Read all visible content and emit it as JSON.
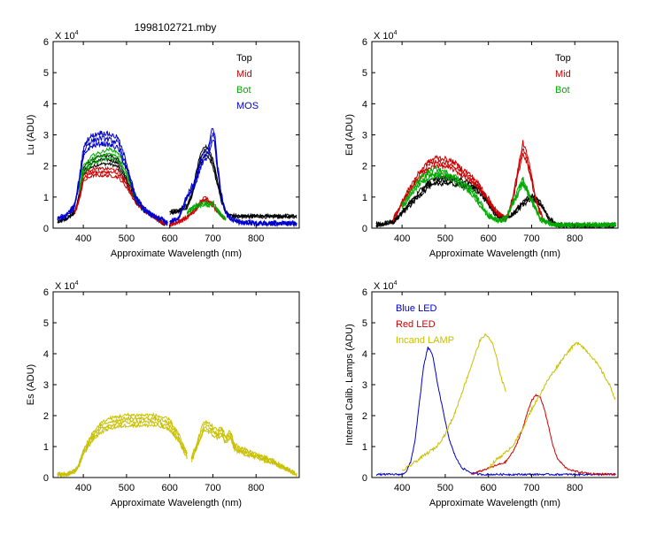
{
  "figure_title": "1998102721.mby",
  "chart_data": [
    {
      "type": "line",
      "ylabel": "Lu (ADU)",
      "xlabel": "Approximate Wavelength (nm)",
      "exponent_label": "X 10",
      "exponent_power": "4",
      "xlim": [
        330,
        900
      ],
      "ylim": [
        0,
        6
      ],
      "xticks": [
        400,
        500,
        600,
        700,
        800
      ],
      "xtick_labels": [
        "400",
        "500",
        "600",
        "700",
        "800"
      ],
      "yticks": [
        0,
        1,
        2,
        3,
        4,
        5,
        6
      ],
      "ytick_labels": [
        "0",
        "1",
        "2",
        "3",
        "4",
        "5",
        "6"
      ],
      "legend": [
        {
          "label": "Top",
          "color": "#000000"
        },
        {
          "label": "Mid",
          "color": "#cc0000"
        },
        {
          "label": "Bot",
          "color": "#00aa00"
        },
        {
          "label": "MOS",
          "color": "#0000cc"
        }
      ],
      "series": [
        {
          "name": "Top",
          "color": "#000000",
          "jitter": 0.05,
          "copies": 3,
          "segments": [
            {
              "x": [
                340,
                360,
                380,
                390,
                400,
                410,
                420,
                440,
                460,
                480,
                500,
                520,
                540,
                560,
                580,
                590
              ],
              "y": [
                0.2,
                0.3,
                0.5,
                1.0,
                1.8,
                2.0,
                2.1,
                2.2,
                2.2,
                2.1,
                1.5,
                0.9,
                0.6,
                0.4,
                0.2,
                0.1
              ]
            },
            {
              "x": [
                600,
                620,
                640,
                650,
                660,
                670,
                680,
                690,
                700,
                710,
                720,
                730,
                740,
                760,
                780,
                800,
                850,
                895
              ],
              "y": [
                0.5,
                0.55,
                0.7,
                1.0,
                1.6,
                2.2,
                2.5,
                2.4,
                2.1,
                1.5,
                0.9,
                0.5,
                0.4,
                0.38,
                0.38,
                0.38,
                0.38,
                0.38
              ]
            }
          ]
        },
        {
          "name": "Mid",
          "color": "#cc0000",
          "jitter": 0.05,
          "copies": 3,
          "segments": [
            {
              "x": [
                380,
                390,
                400,
                410,
                420,
                440,
                460,
                480,
                500,
                520,
                540,
                560,
                580,
                590
              ],
              "y": [
                0.5,
                0.9,
                1.6,
                1.7,
                1.8,
                1.8,
                1.8,
                1.75,
                1.4,
                0.9,
                0.6,
                0.4,
                0.2,
                0.1
              ]
            },
            {
              "x": [
                600,
                620,
                640,
                660,
                670,
                680,
                690,
                700,
                710,
                720,
                730
              ],
              "y": [
                0.1,
                0.2,
                0.35,
                0.6,
                0.8,
                0.95,
                0.85,
                0.75,
                0.55,
                0.4,
                0.3
              ]
            }
          ]
        },
        {
          "name": "Bot",
          "color": "#00aa00",
          "jitter": 0.05,
          "copies": 3,
          "segments": [
            {
              "x": [
                390,
                400,
                410,
                420,
                440,
                460,
                480,
                500,
                520,
                540
              ],
              "y": [
                1.2,
                1.9,
                2.0,
                2.2,
                2.3,
                2.4,
                2.3,
                1.8,
                1.0,
                0.6
              ]
            },
            {
              "x": [
                640,
                660,
                680,
                690,
                700,
                710,
                720,
                730
              ],
              "y": [
                0.5,
                0.7,
                0.8,
                0.75,
                0.8,
                0.6,
                0.4,
                0.3
              ]
            }
          ]
        },
        {
          "name": "MOS",
          "color": "#0000cc",
          "jitter": 0.08,
          "copies": 3,
          "segments": [
            {
              "x": [
                340,
                360,
                380,
                390,
                400,
                410,
                420,
                440,
                460,
                480,
                500,
                520,
                540,
                560,
                580,
                595
              ],
              "y": [
                0.3,
                0.4,
                0.7,
                1.5,
                2.4,
                2.7,
                2.8,
                2.9,
                2.85,
                2.75,
                2.0,
                1.0,
                0.6,
                0.4,
                0.3,
                0.15
              ]
            },
            {
              "x": [
                600,
                620,
                640,
                660,
                670,
                680,
                690,
                700,
                705,
                710,
                720,
                730,
                740,
                760,
                800,
                850,
                895
              ],
              "y": [
                0.2,
                0.3,
                1.0,
                1.5,
                2.0,
                2.3,
                2.5,
                3.1,
                2.8,
                2.0,
                1.0,
                0.5,
                0.3,
                0.2,
                0.15,
                0.15,
                0.15
              ]
            }
          ]
        }
      ]
    },
    {
      "type": "line",
      "ylabel": "Ed  (ADU)",
      "xlabel": "Approximate Wavelength (nm)",
      "exponent_label": "X 10",
      "exponent_power": "4",
      "xlim": [
        330,
        900
      ],
      "ylim": [
        0,
        6
      ],
      "xticks": [
        400,
        500,
        600,
        700,
        800
      ],
      "xtick_labels": [
        "400",
        "500",
        "600",
        "700",
        "800"
      ],
      "yticks": [
        0,
        1,
        2,
        3,
        4,
        5,
        6
      ],
      "ytick_labels": [
        "0",
        "1",
        "2",
        "3",
        "4",
        "5",
        "6"
      ],
      "legend": [
        {
          "label": "Top",
          "color": "#000000"
        },
        {
          "label": "Mid",
          "color": "#cc0000"
        },
        {
          "label": "Bot",
          "color": "#00aa00"
        }
      ],
      "series": [
        {
          "name": "Top",
          "color": "#000000",
          "jitter": 0.08,
          "copies": 3,
          "segments": [
            {
              "x": [
                340,
                380,
                400,
                420,
                440,
                460,
                480,
                500,
                520,
                540,
                560,
                580,
                600,
                620,
                640,
                660,
                680,
                700,
                720,
                740,
                760,
                800,
                850,
                895
              ],
              "y": [
                0.1,
                0.2,
                0.5,
                0.8,
                1.1,
                1.4,
                1.5,
                1.55,
                1.5,
                1.45,
                1.35,
                1.2,
                0.8,
                0.4,
                0.3,
                0.5,
                0.8,
                1.0,
                0.8,
                0.3,
                0.1,
                0.08,
                0.08,
                0.08
              ]
            }
          ]
        },
        {
          "name": "Mid",
          "color": "#cc0000",
          "jitter": 0.08,
          "copies": 3,
          "segments": [
            {
              "x": [
                380,
                400,
                420,
                440,
                460,
                480,
                500,
                520,
                540,
                560,
                580,
                600,
                620,
                640,
                650,
                660,
                670,
                680,
                690,
                700,
                710,
                720,
                730
              ],
              "y": [
                0.3,
                0.8,
                1.3,
                1.7,
                2.0,
                2.15,
                2.1,
                2.0,
                1.8,
                1.6,
                1.3,
                0.9,
                0.5,
                0.3,
                0.6,
                1.2,
                1.9,
                2.6,
                2.2,
                1.6,
                0.9,
                0.5,
                0.2
              ]
            }
          ]
        },
        {
          "name": "Bot",
          "color": "#00aa00",
          "jitter": 0.08,
          "copies": 3,
          "segments": [
            {
              "x": [
                400,
                420,
                440,
                460,
                480,
                500,
                520,
                540,
                560,
                580,
                600,
                620,
                640,
                650,
                660,
                670,
                680,
                690,
                700,
                710,
                720,
                740,
                760,
                800,
                850,
                895
              ],
              "y": [
                0.7,
                1.1,
                1.5,
                1.7,
                1.8,
                1.7,
                1.6,
                1.4,
                1.2,
                0.8,
                0.4,
                0.25,
                0.3,
                0.6,
                0.9,
                1.2,
                1.5,
                1.2,
                0.9,
                0.6,
                0.3,
                0.15,
                0.1,
                0.1,
                0.1,
                0.1
              ]
            }
          ]
        }
      ]
    },
    {
      "type": "line",
      "ylabel": "Es  (ADU)",
      "xlabel": "Approximate Wavelength (nm)",
      "exponent_label": "X 10",
      "exponent_power": "4",
      "xlim": [
        330,
        900
      ],
      "ylim": [
        0,
        6
      ],
      "xticks": [
        400,
        500,
        600,
        700,
        800
      ],
      "xtick_labels": [
        "400",
        "500",
        "600",
        "700",
        "800"
      ],
      "yticks": [
        0,
        1,
        2,
        3,
        4,
        5,
        6
      ],
      "ytick_labels": [
        "0",
        "1",
        "2",
        "3",
        "4",
        "5",
        "6"
      ],
      "legend": [],
      "series": [
        {
          "name": "Es",
          "color": "#c8c000",
          "jitter": 0.06,
          "copies": 4,
          "segments": [
            {
              "x": [
                340,
                360,
                380,
                390,
                400,
                420,
                440,
                460,
                480,
                500,
                520,
                540,
                560,
                580,
                600,
                620,
                630,
                640
              ],
              "y": [
                0.1,
                0.1,
                0.2,
                0.4,
                0.8,
                1.3,
                1.6,
                1.75,
                1.8,
                1.85,
                1.85,
                1.85,
                1.85,
                1.8,
                1.7,
                1.3,
                1.0,
                0.7
              ]
            },
            {
              "x": [
                650,
                660,
                670,
                680,
                690,
                700,
                710,
                720,
                730,
                740,
                750,
                760,
                780,
                800,
                820,
                840,
                860,
                880,
                895
              ],
              "y": [
                0.6,
                0.9,
                1.3,
                1.7,
                1.6,
                1.5,
                1.4,
                1.5,
                1.2,
                1.4,
                1.0,
                0.9,
                0.8,
                0.7,
                0.6,
                0.5,
                0.35,
                0.2,
                0.1
              ]
            }
          ]
        }
      ]
    },
    {
      "type": "line",
      "ylabel": "Internal Calib. Lamps (ADU)",
      "xlabel": "Approximate Wavelength (nm)",
      "exponent_label": "X 10",
      "exponent_power": "4",
      "xlim": [
        330,
        900
      ],
      "ylim": [
        0,
        6
      ],
      "xticks": [
        400,
        500,
        600,
        700,
        800
      ],
      "xtick_labels": [
        "400",
        "500",
        "600",
        "700",
        "800"
      ],
      "yticks": [
        0,
        1,
        2,
        3,
        4,
        5,
        6
      ],
      "ytick_labels": [
        "0",
        "1",
        "2",
        "3",
        "4",
        "5",
        "6"
      ],
      "legend": [
        {
          "label": "Blue LED",
          "color": "#0000cc"
        },
        {
          "label": "Red LED",
          "color": "#cc0000"
        },
        {
          "label": "Incand LAMP",
          "color": "#c8c000"
        }
      ],
      "series": [
        {
          "name": "Blue LED",
          "color": "#0000cc",
          "jitter": 0.03,
          "copies": 1,
          "segments": [
            {
              "x": [
                340,
                380,
                400,
                410,
                420,
                430,
                440,
                450,
                460,
                470,
                480,
                490,
                500,
                510,
                520,
                530,
                540,
                560,
                580,
                600,
                700,
                800,
                895
              ],
              "y": [
                0.1,
                0.1,
                0.1,
                0.2,
                0.5,
                1.2,
                2.4,
                3.6,
                4.2,
                4.0,
                3.2,
                2.5,
                1.8,
                1.2,
                0.8,
                0.5,
                0.3,
                0.15,
                0.1,
                0.1,
                0.1,
                0.1,
                0.1
              ]
            }
          ]
        },
        {
          "name": "Red LED",
          "color": "#cc0000",
          "jitter": 0.03,
          "copies": 1,
          "segments": [
            {
              "x": [
                560,
                600,
                640,
                660,
                680,
                690,
                700,
                710,
                720,
                730,
                740,
                750,
                760,
                780,
                800,
                840,
                895
              ],
              "y": [
                0.1,
                0.3,
                0.5,
                0.9,
                1.6,
                2.1,
                2.5,
                2.65,
                2.6,
                2.2,
                1.6,
                1.0,
                0.6,
                0.3,
                0.2,
                0.12,
                0.1
              ]
            }
          ]
        },
        {
          "name": "Incand LAMP",
          "color": "#c8c000",
          "jitter": 0.05,
          "copies": 1,
          "segments": [
            {
              "x": [
                400,
                420,
                440,
                460,
                480,
                500,
                520,
                540,
                560,
                570,
                580,
                590,
                600,
                610,
                620,
                630,
                640
              ],
              "y": [
                0.2,
                0.4,
                0.6,
                0.8,
                1.0,
                1.4,
                2.0,
                2.8,
                3.6,
                4.0,
                4.4,
                4.6,
                4.55,
                4.3,
                3.8,
                3.2,
                2.8
              ]
            },
            {
              "x": [
                600,
                620,
                640,
                660,
                680,
                700,
                720,
                740,
                760,
                780,
                800,
                810,
                820,
                840,
                860,
                880,
                895
              ],
              "y": [
                0.3,
                0.6,
                0.8,
                1.1,
                1.6,
                2.2,
                2.7,
                3.2,
                3.6,
                4.0,
                4.3,
                4.35,
                4.2,
                3.9,
                3.5,
                3.0,
                2.5
              ]
            }
          ]
        }
      ]
    }
  ]
}
